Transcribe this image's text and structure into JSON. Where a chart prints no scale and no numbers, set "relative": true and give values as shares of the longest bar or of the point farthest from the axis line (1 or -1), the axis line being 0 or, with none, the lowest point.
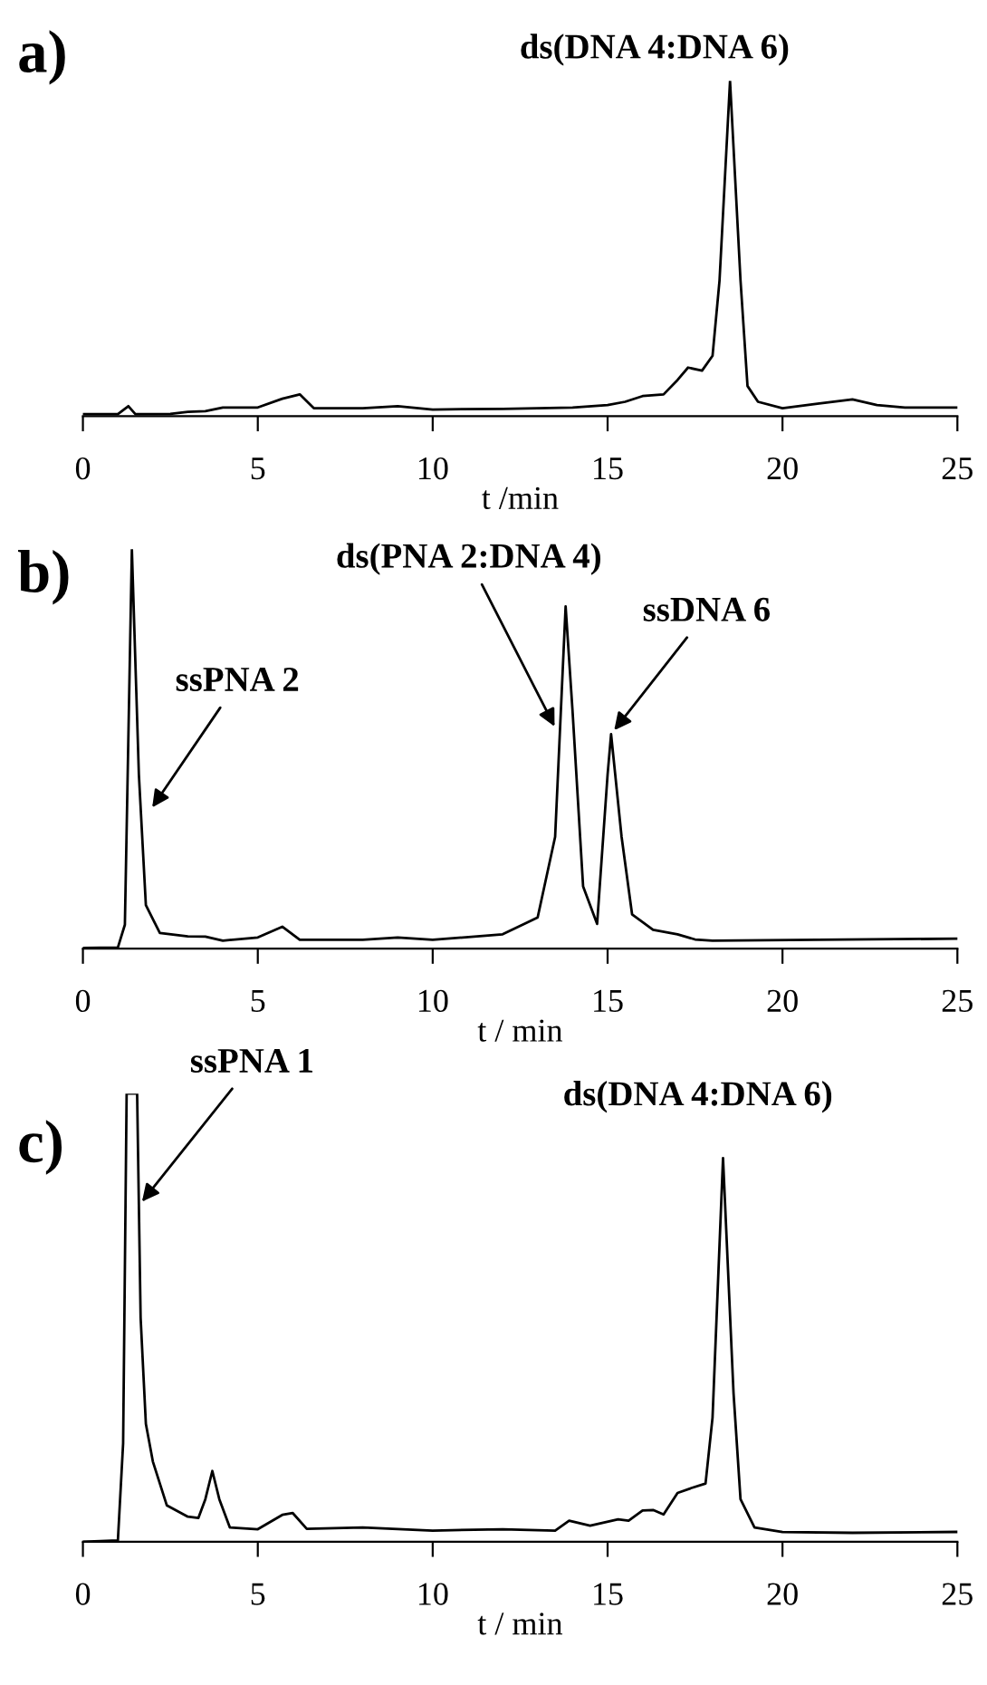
{
  "chart_data": [
    {
      "type": "line",
      "title": "a)",
      "xlabel": "t /min",
      "relative": true,
      "xlim": [
        0,
        25
      ],
      "xticks": [
        0,
        5,
        10,
        15,
        20,
        25
      ],
      "grid": false,
      "legend": false,
      "marker": "none",
      "line_style": "solid",
      "series": [
        {
          "color": "#000000",
          "x": [
            0,
            1.0,
            1.3,
            1.5,
            2.5,
            3.0,
            3.5,
            4.0,
            5.0,
            5.7,
            6.2,
            6.6,
            8,
            9,
            10,
            12,
            14,
            15,
            15.5,
            16,
            16.6,
            17.0,
            17.3,
            17.7,
            18.0,
            18.2,
            18.5,
            18.8,
            19.0,
            19.3,
            20,
            21,
            22,
            22.7,
            23.5,
            25
          ],
          "values": [
            0.006,
            0.006,
            0.03,
            0.006,
            0.007,
            0.013,
            0.015,
            0.026,
            0.026,
            0.052,
            0.065,
            0.024,
            0.024,
            0.03,
            0.02,
            0.022,
            0.026,
            0.033,
            0.043,
            0.06,
            0.065,
            0.108,
            0.145,
            0.136,
            0.18,
            0.405,
            1.0,
            0.405,
            0.09,
            0.043,
            0.024,
            0.037,
            0.05,
            0.033,
            0.026,
            0.026
          ]
        }
      ],
      "annotations": [
        {
          "text": "ds(DNA 4:DNA 6)",
          "x": 18.5,
          "y": 1.0
        }
      ]
    },
    {
      "type": "line",
      "title": "b)",
      "xlabel": "t / min",
      "relative": true,
      "xlim": [
        0,
        25
      ],
      "xticks": [
        0,
        5,
        10,
        15,
        20,
        25
      ],
      "grid": false,
      "legend": false,
      "marker": "none",
      "line_style": "solid",
      "series": [
        {
          "color": "#000000",
          "x": [
            0,
            1.0,
            1.2,
            1.4,
            1.6,
            1.8,
            2.2,
            3,
            3.5,
            4,
            5,
            5.7,
            6.2,
            8,
            9,
            10,
            12,
            13,
            13.5,
            13.8,
            14.0,
            14.3,
            14.7,
            15.0,
            15.1,
            15.4,
            15.7,
            16.3,
            17,
            17.5,
            18,
            25
          ],
          "values": [
            0.002,
            0.003,
            0.06,
            1.0,
            0.436,
            0.109,
            0.039,
            0.031,
            0.03,
            0.02,
            0.028,
            0.055,
            0.022,
            0.022,
            0.028,
            0.022,
            0.036,
            0.078,
            0.28,
            0.857,
            0.592,
            0.156,
            0.062,
            0.436,
            0.537,
            0.28,
            0.086,
            0.047,
            0.036,
            0.023,
            0.02,
            0.025
          ]
        }
      ],
      "annotations": [
        {
          "text": "ssPNA 2",
          "x": 1.9,
          "y": 0.343
        },
        {
          "text": "ds(PNA 2:DNA 4)",
          "x": 13.55,
          "y": 0.545
        },
        {
          "text": "ssDNA 6",
          "x": 15.1,
          "y": 0.537
        }
      ]
    },
    {
      "type": "line",
      "title": "c)",
      "xlabel": "t / min",
      "relative": true,
      "xlim": [
        0,
        25
      ],
      "xticks": [
        0,
        5,
        10,
        15,
        20,
        25
      ],
      "grid": false,
      "legend": false,
      "marker": "none",
      "line_style": "solid",
      "series": [
        {
          "color": "#000000",
          "x": [
            0,
            1.0,
            1.15,
            1.25,
            1.55,
            1.65,
            1.8,
            2.0,
            2.4,
            3.0,
            3.3,
            3.5,
            3.7,
            3.9,
            4.2,
            5.0,
            5.7,
            6.0,
            6.4,
            8,
            10,
            12,
            13.5,
            13.9,
            14.5,
            15.3,
            15.6,
            16.0,
            16.3,
            16.6,
            17.0,
            17.4,
            17.8,
            18.0,
            18.3,
            18.6,
            18.8,
            19.2,
            20,
            22,
            25
          ],
          "values": [
            0,
            0.003,
            0.22,
            1.0,
            1.0,
            0.5,
            0.263,
            0.179,
            0.081,
            0.056,
            0.053,
            0.095,
            0.158,
            0.095,
            0.032,
            0.028,
            0.06,
            0.064,
            0.029,
            0.032,
            0.025,
            0.028,
            0.025,
            0.047,
            0.036,
            0.05,
            0.047,
            0.07,
            0.071,
            0.061,
            0.109,
            0.12,
            0.13,
            0.277,
            0.856,
            0.332,
            0.095,
            0.032,
            0.022,
            0.02,
            0.022
          ]
        }
      ],
      "annotations": [
        {
          "text": "ssPNA 1",
          "x": 1.6,
          "y": 0.75
        },
        {
          "text": "ds(DNA 4:DNA 6)",
          "x": 18.3,
          "y": 0.856
        }
      ]
    }
  ]
}
